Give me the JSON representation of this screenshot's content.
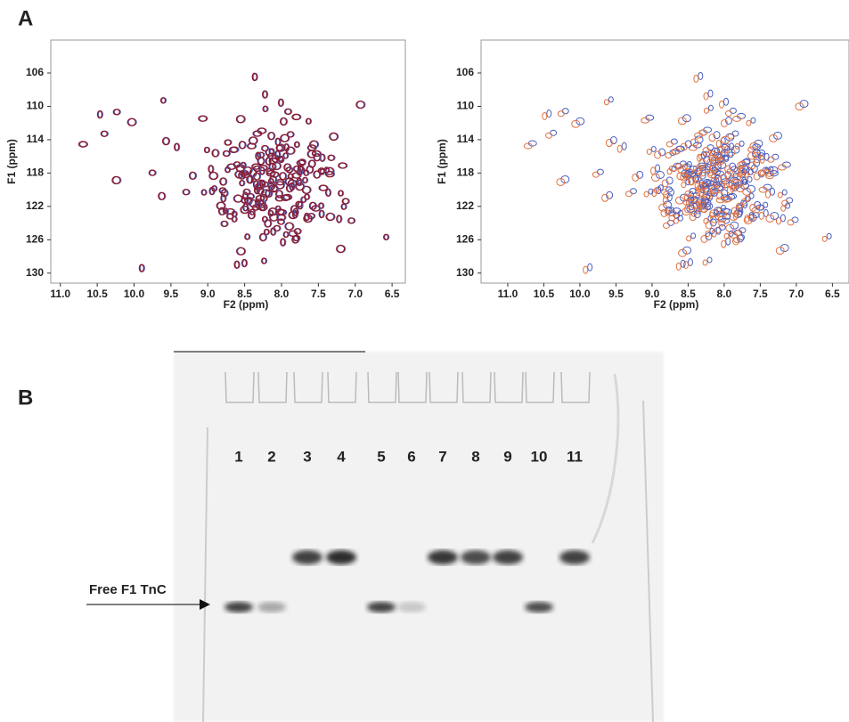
{
  "panel_a_label": "A",
  "spectra": [
    {
      "xlim": [
        11.13,
        6.32
      ],
      "ylim": [
        102.05,
        131.2
      ],
      "xticks": [
        {
          "value": 11,
          "label": "11.0"
        },
        10.5,
        {
          "value": 10,
          "label": "10.0"
        },
        9.5,
        {
          "value": 9,
          "label": "9.0"
        },
        8.5,
        {
          "value": 8,
          "label": "8.0"
        },
        7.5,
        {
          "value": 7,
          "label": "7.0"
        },
        6.5
      ],
      "yticks": [
        106,
        110,
        114,
        118,
        122,
        126,
        130
      ],
      "x_label": "F2 (ppm)",
      "y_label": "F1 (ppm)"
    },
    {
      "xlim": [
        11.37,
        6.27
      ],
      "ylim": [
        102.05,
        131.2
      ],
      "xticks": [
        {
          "value": 11,
          "label": "11.0"
        },
        10.5,
        {
          "value": 10,
          "label": "10.0"
        },
        9.5,
        {
          "value": 9,
          "label": "9.0"
        },
        8.5,
        {
          "value": 8,
          "label": "8.0"
        },
        7.5,
        {
          "value": 7,
          "label": "7.0"
        },
        6.5
      ],
      "yticks": [
        106,
        110,
        114,
        118,
        122,
        126,
        130
      ],
      "x_label": "F2 (ppm)",
      "y_label": "F1 (ppm)"
    }
  ],
  "panel_b_label": "B",
  "gel": {
    "lanes": [
      "1",
      "2",
      "3",
      "4",
      "5",
      "6",
      "7",
      "8",
      "9",
      "10",
      "11"
    ],
    "annotation": "Free F1 TnC"
  }
}
